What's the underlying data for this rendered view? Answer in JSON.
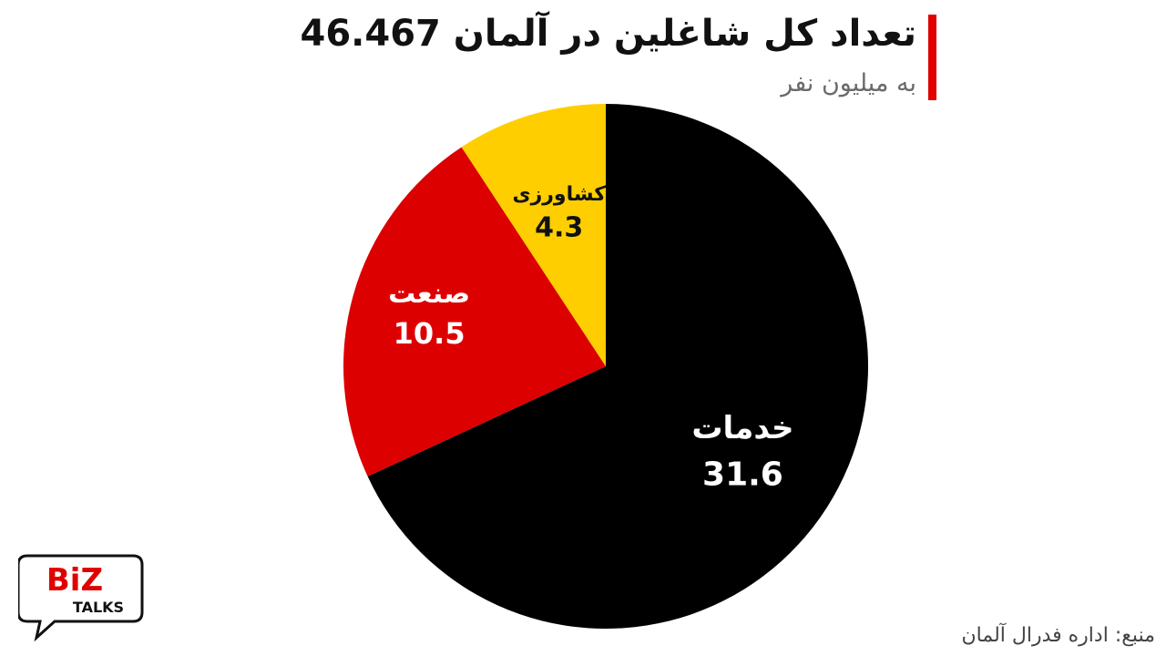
{
  "header": {
    "title": "تعداد کل شاغلین در آلمان 46.467",
    "subtitle": "به میلیون نفر"
  },
  "footer": {
    "source": "منبع: اداره فدرال آلمان"
  },
  "logo": {
    "line1": "BiZ",
    "line2": "TALKS"
  },
  "colors": {
    "accent": "#e00000",
    "services": "#000000",
    "industry": "#dd0000",
    "agriculture": "#ffce00"
  },
  "chart_data": {
    "type": "pie",
    "title": "تعداد کل شاغلین در آلمان 46.467",
    "subtitle": "به میلیون نفر",
    "slices": [
      {
        "label": "خدمات",
        "value": 31.6,
        "color": "#000000",
        "text_color": "#ffffff"
      },
      {
        "label": "صنعت",
        "value": 10.5,
        "color": "#dd0000",
        "text_color": "#ffffff"
      },
      {
        "label": "کشاورزی",
        "value": 4.3,
        "color": "#ffce00",
        "text_color": "#111111"
      }
    ],
    "start": "12 o'clock",
    "direction": "clockwise"
  }
}
